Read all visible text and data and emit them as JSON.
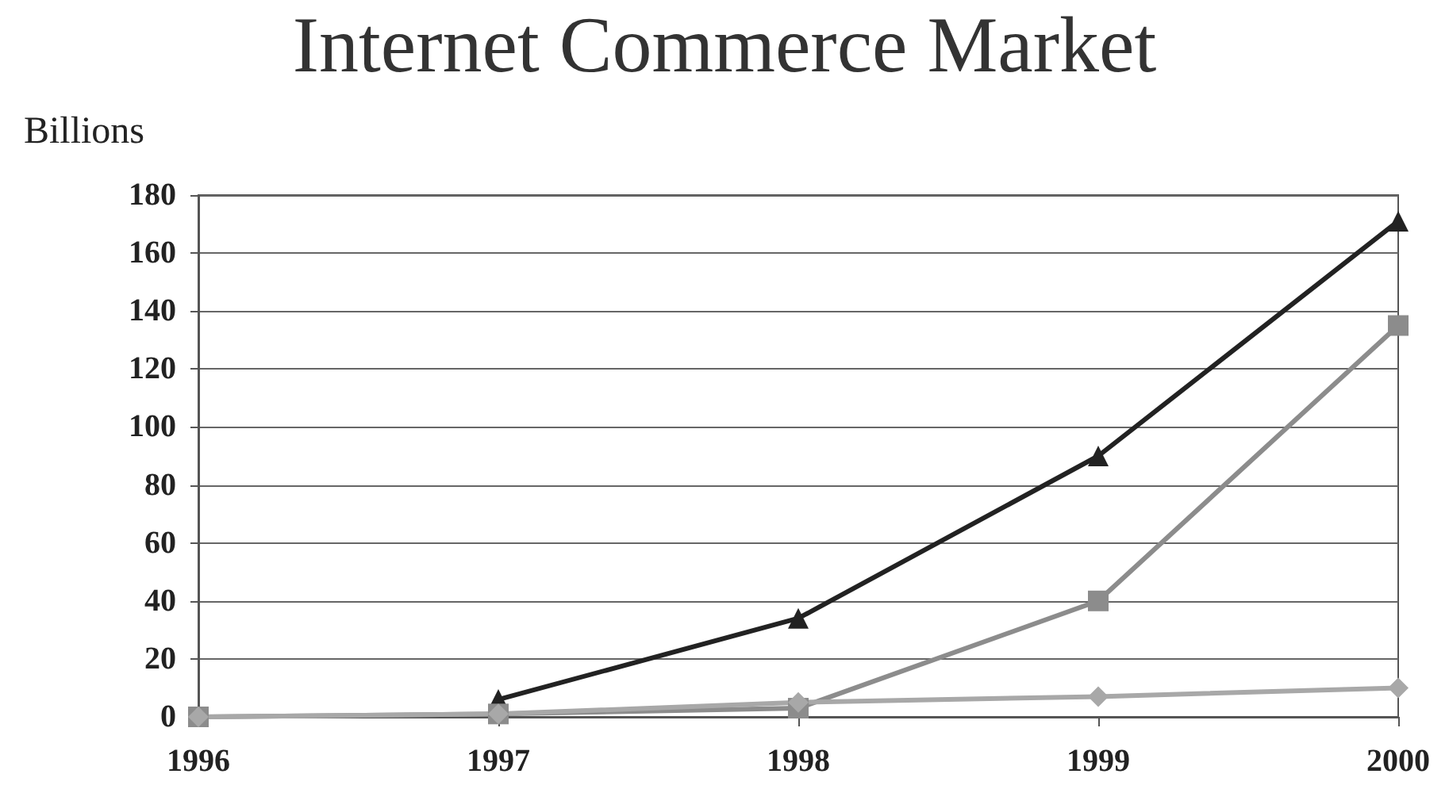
{
  "chart_data": {
    "type": "line",
    "title": "Internet Commerce Market",
    "ylabel": "Billions",
    "categories": [
      "1996",
      "1997",
      "1998",
      "1999",
      "2000"
    ],
    "series": [
      {
        "color": "#222222",
        "marker": "triangle",
        "values": [
          null,
          6,
          34,
          90,
          171
        ]
      },
      {
        "color": "#8c8c8c",
        "marker": "square",
        "values": [
          0,
          1,
          3,
          40,
          135
        ]
      },
      {
        "color": "#a8a8a8",
        "marker": "diamond",
        "values": [
          0,
          1,
          5,
          7,
          10
        ]
      }
    ],
    "ylim": [
      0,
      180
    ],
    "yticks": [
      0,
      20,
      40,
      60,
      80,
      100,
      120,
      140,
      160,
      180
    ],
    "grid": "y",
    "line_style": "solid"
  }
}
